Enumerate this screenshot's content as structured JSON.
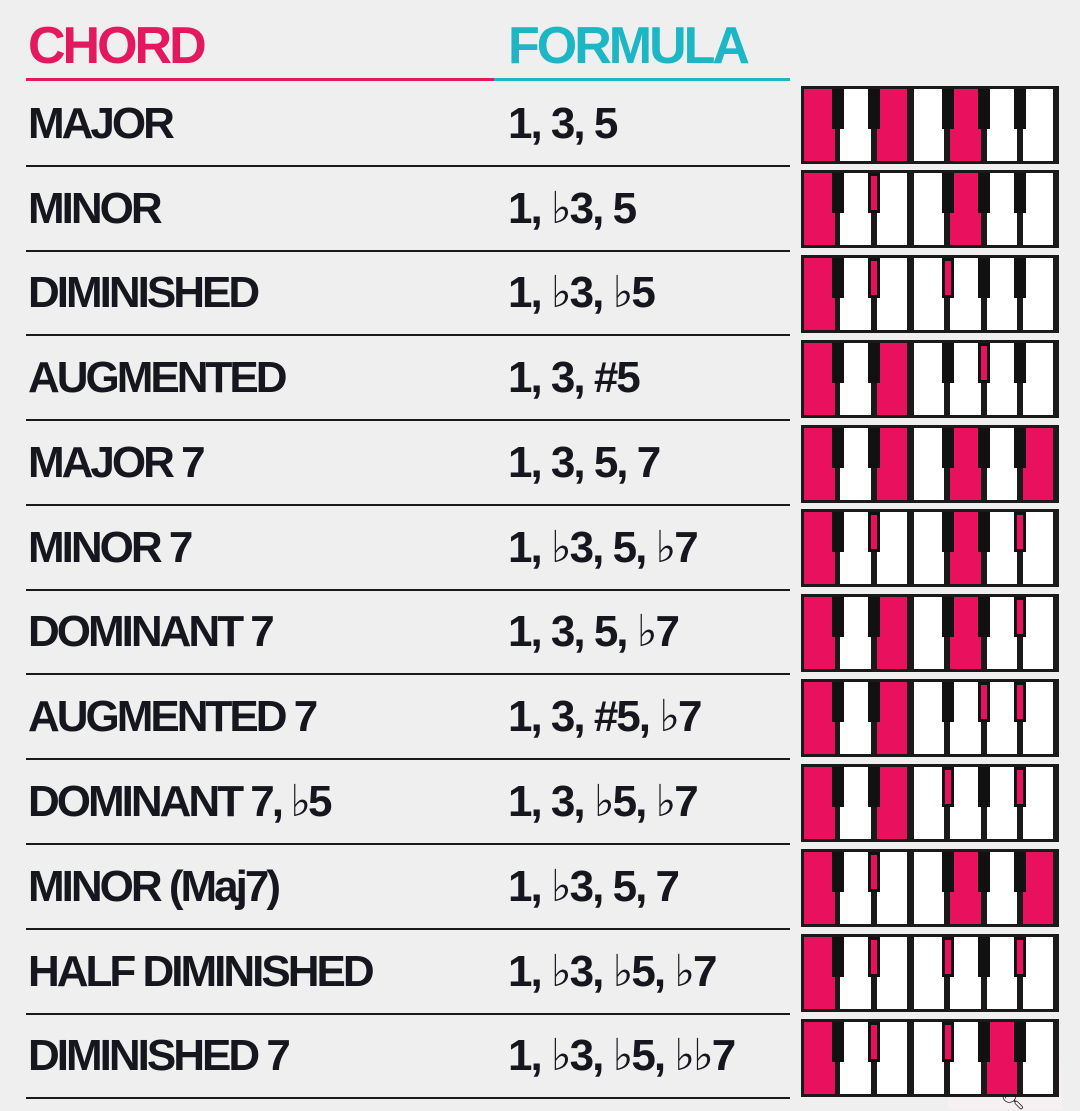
{
  "header": {
    "chord_label": "CHORD",
    "formula_label": "FORMULA",
    "chord_color": "#e4185f",
    "formula_color": "#1cb6c4"
  },
  "colors": {
    "active_key": "#e9115e",
    "text": "#16161e",
    "background": "#efefef"
  },
  "rows": [
    {
      "name": "MAJOR",
      "formula": "1, 3, 5",
      "white_on": [
        0,
        2,
        4
      ],
      "black_on": []
    },
    {
      "name": "MINOR",
      "formula": "1, ♭3, 5",
      "white_on": [
        0,
        4
      ],
      "black_on": [
        1
      ]
    },
    {
      "name": "DIMINISHED",
      "formula": "1, ♭3, ♭5",
      "white_on": [
        0
      ],
      "black_on": [
        1,
        2
      ]
    },
    {
      "name": "AUGMENTED",
      "formula": "1, 3, #5",
      "white_on": [
        0,
        2
      ],
      "black_on": [
        3
      ]
    },
    {
      "name": "MAJOR 7",
      "formula": "1, 3, 5, 7",
      "white_on": [
        0,
        2,
        4,
        6
      ],
      "black_on": []
    },
    {
      "name": "MINOR 7",
      "formula": "1, ♭3, 5, ♭7",
      "white_on": [
        0,
        4
      ],
      "black_on": [
        1,
        4
      ]
    },
    {
      "name": "DOMINANT 7",
      "formula": "1, 3, 5, ♭7",
      "white_on": [
        0,
        2,
        4
      ],
      "black_on": [
        4
      ]
    },
    {
      "name": "AUGMENTED 7",
      "formula": "1, 3, #5, ♭7",
      "white_on": [
        0,
        2
      ],
      "black_on": [
        3,
        4
      ]
    },
    {
      "name": "DOMINANT 7, ♭5",
      "formula": "1, 3, ♭5, ♭7",
      "white_on": [
        0,
        2
      ],
      "black_on": [
        2,
        4
      ]
    },
    {
      "name": "MINOR (Maj7)",
      "formula": "1, ♭3, 5, 7",
      "white_on": [
        0,
        4,
        6
      ],
      "black_on": [
        1
      ]
    },
    {
      "name": "HALF DIMINISHED",
      "formula": "1, ♭3, ♭5, ♭7",
      "white_on": [
        0
      ],
      "black_on": [
        1,
        2,
        4
      ]
    },
    {
      "name": "DIMINISHED 7",
      "formula": "1, ♭3, ♭5, ♭♭7",
      "white_on": [
        0,
        5
      ],
      "black_on": [
        1,
        2
      ]
    }
  ],
  "watermark": {
    "icon": "search-icon"
  }
}
